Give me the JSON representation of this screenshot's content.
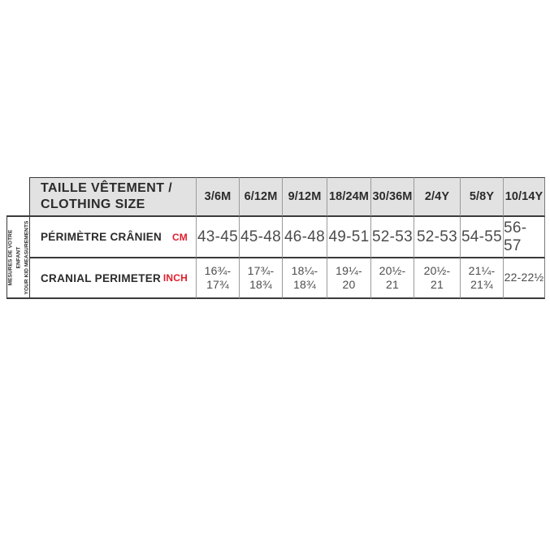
{
  "colors": {
    "accent_red": "#e21d2c",
    "header_bg": "#e2e2e2",
    "border_dark": "#3b3b3b",
    "border_light": "#9b9b9b",
    "heading_text": "#2b2b2b",
    "value_text": "#4c4c4c"
  },
  "side_label": {
    "lines": [
      "MESURES DE VOTRE ENFANT",
      "YOUR KID MEASUREMENTS"
    ]
  },
  "display": {
    "title_lines": [
      "TAILLE VÊTEMENT /",
      "CLOTHING SIZE"
    ],
    "inch_lines": [
      [
        "16¾-",
        "17¾"
      ],
      [
        "17¾-",
        "18¾"
      ],
      [
        "18¼-",
        "18¾"
      ],
      [
        "19¼-",
        "20"
      ],
      [
        "20½-",
        "21"
      ],
      [
        "20½-",
        "21"
      ],
      [
        "21¼-",
        "21¾"
      ],
      [
        "22-22½"
      ]
    ]
  },
  "chart_data": {
    "type": "table",
    "title": "TAILLE VÊTEMENT / CLOTHING SIZE",
    "side_note": "MESURES DE VOTRE ENFANT / YOUR KID MEASUREMENTS",
    "columns": [
      "3/6M",
      "6/12M",
      "9/12M",
      "18/24M",
      "30/36M",
      "2/4Y",
      "5/8Y",
      "10/14Y"
    ],
    "rows": [
      {
        "label": "PÉRIMÈTRE CRÂNIEN",
        "unit": "CM",
        "values": [
          "43-45",
          "45-48",
          "46-48",
          "49-51",
          "52-53",
          "52-53",
          "54-55",
          "56-57"
        ]
      },
      {
        "label": "CRANIAL PERIMETER",
        "unit": "INCH",
        "values": [
          "16¾-17¾",
          "17¾-18¾",
          "18¼-18¾",
          "19¼-20",
          "20½-21",
          "20½-21",
          "21¼-21¾",
          "22-22½"
        ]
      }
    ]
  }
}
